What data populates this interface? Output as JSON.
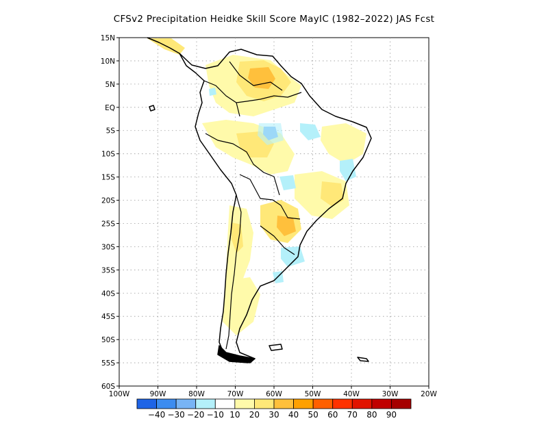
{
  "title": "CFSv2  Precipitation Heidke Skill Score MayIC (1982–2022) JAS Fcst",
  "map": {
    "lat_labels": [
      "15N",
      "10N",
      "5N",
      "EQ",
      "5S",
      "10S",
      "15S",
      "20S",
      "25S",
      "30S",
      "35S",
      "40S",
      "45S",
      "50S",
      "55S",
      "60S"
    ],
    "lon_labels": [
      "100W",
      "90W",
      "80W",
      "70W",
      "60W",
      "50W",
      "40W",
      "30W",
      "20W"
    ],
    "grid": true,
    "land_outline_color": "#000000"
  },
  "colorbar": {
    "colors": [
      "#1e64e6",
      "#3c8cf0",
      "#78b4f5",
      "#b4f0fa",
      "#ffffff",
      "#fffaaa",
      "#ffe878",
      "#ffc03c",
      "#ffa000",
      "#ff6000",
      "#ff3200",
      "#e11400",
      "#c00000",
      "#a50000"
    ],
    "labels": [
      "−40",
      "−30",
      "−20",
      "−10",
      "10",
      "20",
      "30",
      "40",
      "50",
      "60",
      "70",
      "80",
      "90"
    ]
  }
}
